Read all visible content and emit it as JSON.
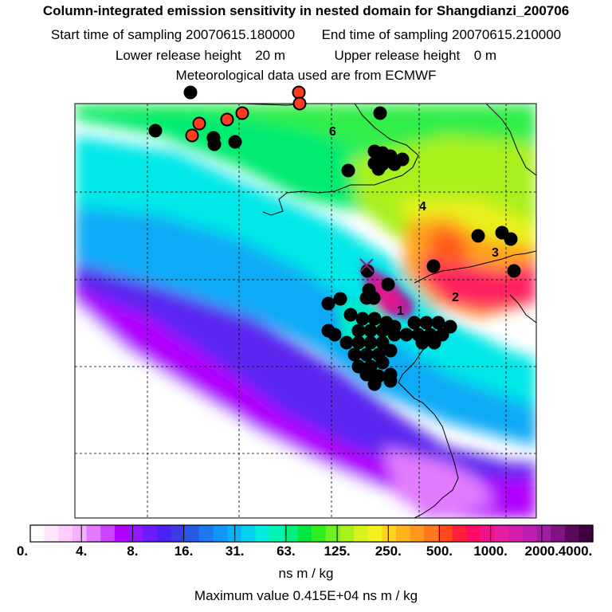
{
  "header": {
    "title": "Column-integrated emission sensitivity in nested domain for Shangdianzi_200706",
    "start_label": "Start time of sampling",
    "start_value": "20070615.180000",
    "end_label": "End time of sampling",
    "end_value": "20070615.210000",
    "lower_label": "Lower release height",
    "lower_value": "20 m",
    "upper_label": "Upper release height",
    "upper_value": "0 m",
    "met_text": "Meteorological data used are from ECMWF"
  },
  "map": {
    "region_labels": [
      "1",
      "2",
      "3",
      "4",
      "6"
    ]
  },
  "colorbar": {
    "ticks": [
      "0.",
      "4.",
      "8.",
      "16.",
      "31.",
      "63.",
      "125.",
      "250.",
      "500.",
      "1000.",
      "2000.",
      "4000."
    ],
    "colors": [
      "#ffffff",
      "#ffe6ff",
      "#ffccff",
      "#f5b0ff",
      "#e27bff",
      "#cc44ff",
      "#b000ff",
      "#9418ff",
      "#6a1cff",
      "#4a22f5",
      "#3c3ce6",
      "#2a58e6",
      "#1e78f0",
      "#1296f5",
      "#08b4f5",
      "#00d2f0",
      "#00ecdc",
      "#00f5b4",
      "#00f080",
      "#00e640",
      "#30ee1e",
      "#70f01e",
      "#a8f01e",
      "#d8f01e",
      "#f5f01e",
      "#ffd21e",
      "#ffb41e",
      "#ff961e",
      "#ff781e",
      "#ff4a1e",
      "#ff1e3c",
      "#ff0a64",
      "#f0148c",
      "#e61ea0",
      "#d21eaa",
      "#be1eb4",
      "#a01ea0",
      "#821482",
      "#5a0a5a",
      "#3c003c"
    ],
    "unit": "ns m / kg",
    "max_text": "Maximum value  0.415E+04 ns m / kg"
  },
  "colors": {
    "receptor_marker": "#8b1e7a",
    "black_points": "#000000",
    "red_points": "#ff3c1e"
  }
}
